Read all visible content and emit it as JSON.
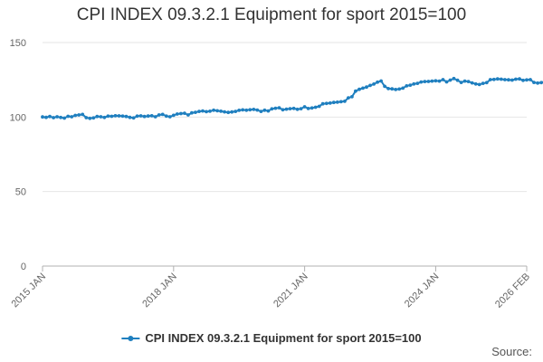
{
  "title": "CPI INDEX 09.3.2.1 Equipment for sport 2015=100",
  "source_label": "Source:",
  "colors": {
    "series": "#1f7fbf",
    "grid": "#e6e6e6",
    "axis": "#b0b0b0"
  },
  "chart_data": {
    "type": "line",
    "title": "CPI INDEX 09.3.2.1 Equipment for sport 2015=100",
    "xlabel": "",
    "ylabel": "",
    "ylim": [
      0,
      150
    ],
    "yticks": [
      0,
      50,
      100,
      150
    ],
    "xlim": [
      "2015-01",
      "2026-02"
    ],
    "xticks": [
      "2015 JAN",
      "2018 JAN",
      "2021 JAN",
      "2024 JAN",
      "2026 FEB"
    ],
    "grid": true,
    "legend_position": "bottom",
    "series": [
      {
        "name": "CPI INDEX 09.3.2.1 Equipment for sport 2015=100",
        "start": "2015-01",
        "frequency": "monthly",
        "values": [
          100.1,
          99.8,
          100.4,
          99.6,
          100.2,
          99.7,
          99.3,
          100.5,
          100.2,
          101.1,
          101.4,
          101.8,
          99.6,
          99.1,
          99.4,
          100.4,
          100.2,
          99.7,
          100.6,
          100.5,
          100.9,
          100.8,
          100.6,
          100.4,
          99.8,
          99.4,
          100.6,
          100.8,
          100.4,
          100.7,
          100.9,
          100.2,
          101.4,
          101.8,
          100.6,
          100.2,
          101.2,
          102.0,
          102.3,
          102.6,
          101.4,
          102.8,
          103.2,
          103.8,
          104.1,
          103.6,
          103.9,
          104.6,
          104.2,
          103.9,
          103.5,
          103.1,
          103.4,
          103.8,
          104.5,
          104.8,
          104.6,
          104.9,
          105.1,
          104.7,
          103.8,
          104.6,
          104.1,
          105.5,
          105.9,
          106.2,
          104.9,
          105.3,
          105.6,
          105.8,
          105.2,
          105.6,
          106.9,
          105.7,
          106.1,
          106.6,
          107.2,
          108.9,
          109.1,
          109.4,
          109.8,
          110.0,
          110.3,
          110.6,
          112.9,
          113.6,
          117.4,
          118.6,
          119.4,
          120.1,
          121.2,
          122.1,
          123.4,
          124.2,
          120.6,
          119.1,
          118.9,
          118.5,
          118.8,
          119.4,
          120.9,
          121.4,
          122.2,
          122.6,
          123.5,
          123.8,
          123.9,
          124.1,
          124.3,
          124.1,
          125.1,
          123.6,
          124.8,
          125.8,
          124.7,
          123.2,
          124.1,
          123.8,
          122.9,
          122.2,
          121.8,
          122.6,
          123.1,
          125.1,
          125.2,
          125.6,
          125.4,
          125.1,
          125.0,
          124.8,
          125.4,
          125.6,
          124.6,
          124.9,
          125.1,
          123.2,
          122.8,
          123.1,
          123.9,
          124.4
        ]
      }
    ]
  }
}
